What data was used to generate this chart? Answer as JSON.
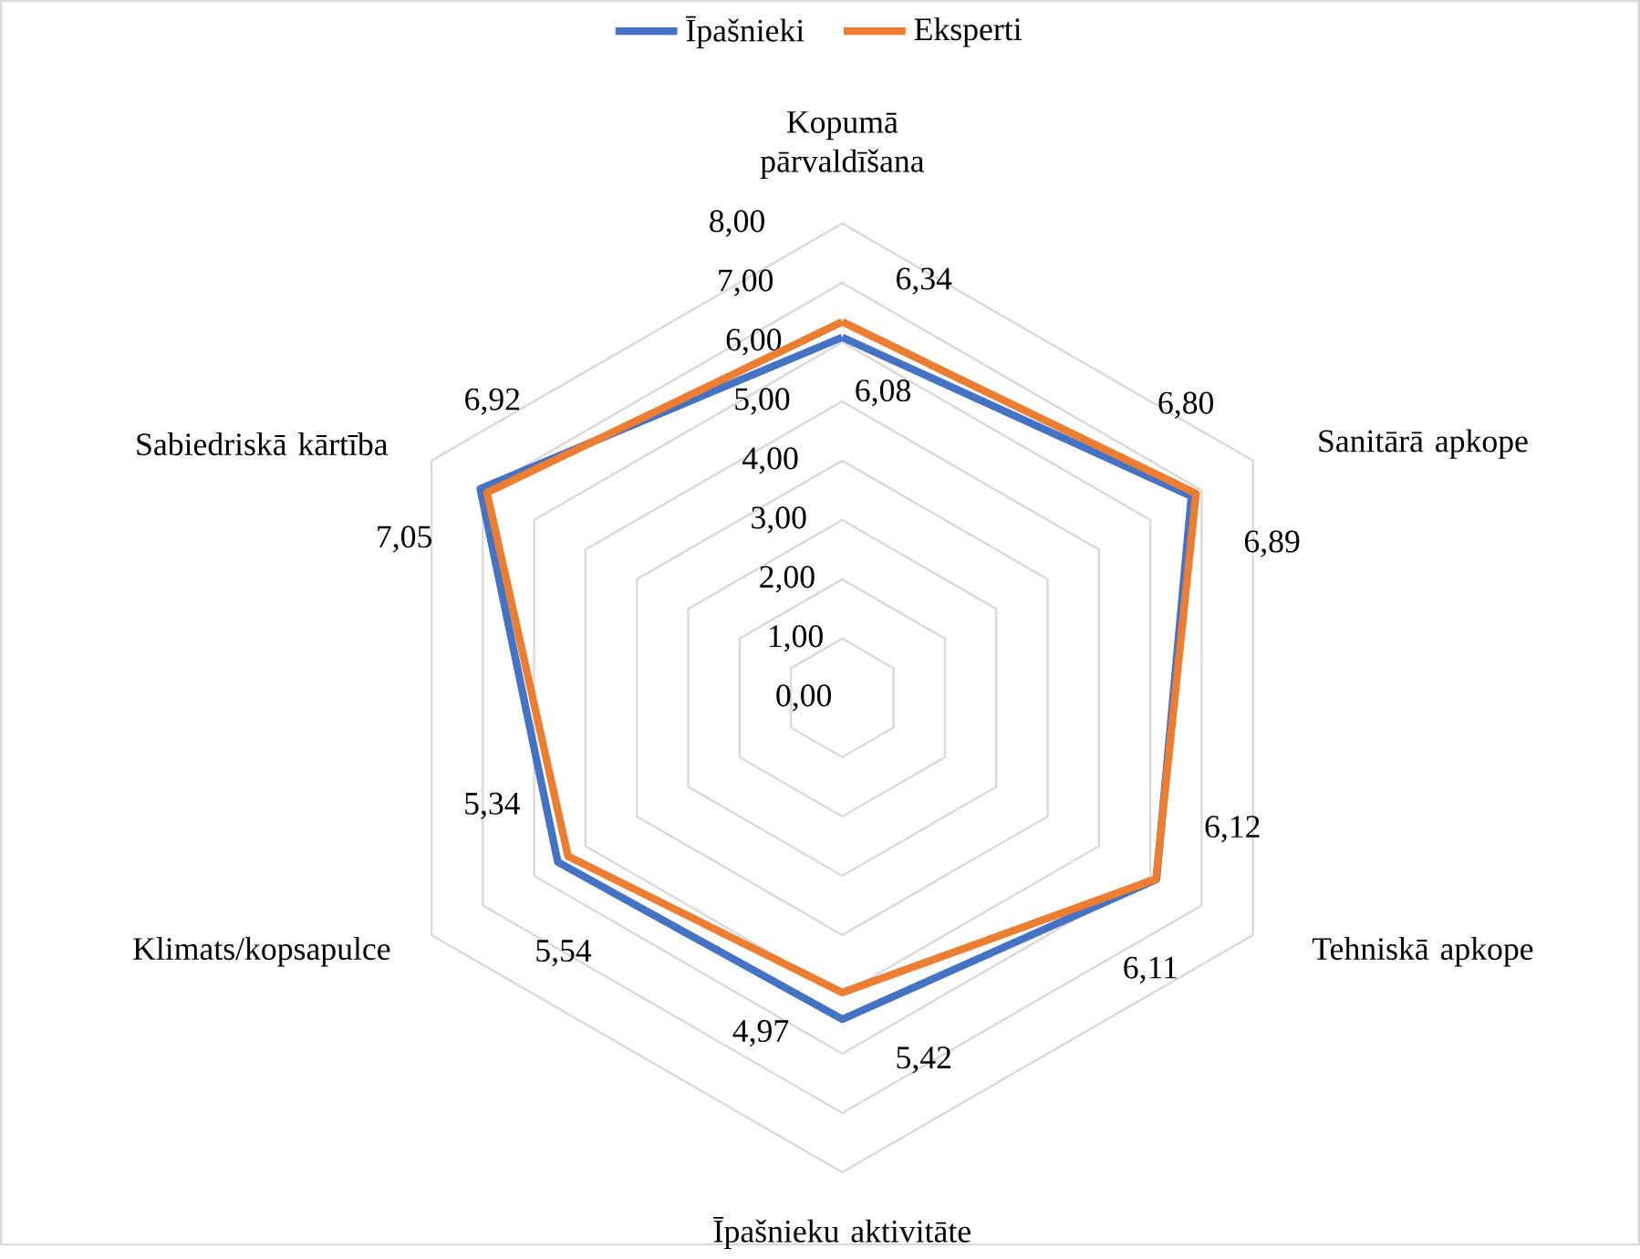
{
  "chart_data": {
    "type": "radar",
    "categories": [
      "Kopumā pārvaldīšana",
      "Sanitārā apkope",
      "Tehniskā apkope",
      "Īpašnieku aktivitāte",
      "Klimats/kopsapulce",
      "Sabiedriskā kārtība"
    ],
    "series": [
      {
        "name": "Īpašnieki",
        "color": "#4472c4",
        "values": [
          6.08,
          6.8,
          6.12,
          5.42,
          5.54,
          7.05
        ],
        "value_labels": [
          "6,08",
          "6,80",
          "6,12",
          "5,42",
          "5,54",
          "7,05"
        ]
      },
      {
        "name": "Eksperti",
        "color": "#ed7d31",
        "values": [
          6.34,
          6.89,
          6.11,
          4.97,
          5.34,
          6.92
        ],
        "value_labels": [
          "6,34",
          "6,89",
          "6,11",
          "4,97",
          "5,34",
          "6,92"
        ]
      }
    ],
    "ylim": [
      0,
      8
    ],
    "yticks": [
      {
        "value": 0,
        "label": "0,00"
      },
      {
        "value": 1,
        "label": "1,00"
      },
      {
        "value": 2,
        "label": "2,00"
      },
      {
        "value": 3,
        "label": "3,00"
      },
      {
        "value": 4,
        "label": "4,00"
      },
      {
        "value": 5,
        "label": "5,00"
      },
      {
        "value": 6,
        "label": "6,00"
      },
      {
        "value": 7,
        "label": "7,00"
      },
      {
        "value": 8,
        "label": "8,00"
      }
    ],
    "grid": true,
    "legend": "top"
  }
}
